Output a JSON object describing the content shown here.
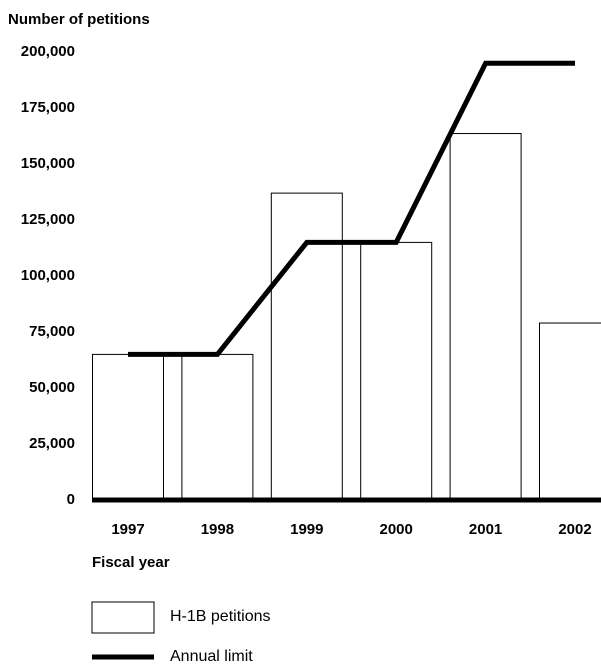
{
  "chart_data": {
    "type": "bar",
    "y_label": "Number of petitions",
    "x_label": "Fiscal year",
    "categories": [
      "1997",
      "1998",
      "1999",
      "2000",
      "2001",
      "2002"
    ],
    "series": [
      {
        "name": "H-1B petitions",
        "type": "bar",
        "color": "#ffffff",
        "values": [
          65000,
          65000,
          137000,
          115000,
          163600,
          79000
        ]
      },
      {
        "name": "Annual limit",
        "type": "line",
        "color": "#000000",
        "values": [
          65000,
          65000,
          115000,
          115000,
          195000,
          195000
        ]
      }
    ],
    "ylim": [
      0,
      200000
    ],
    "yticks": [
      {
        "value": 0,
        "label": "0"
      },
      {
        "value": 25000,
        "label": "25,000"
      },
      {
        "value": 50000,
        "label": "50,000"
      },
      {
        "value": 75000,
        "label": "75,000"
      },
      {
        "value": 100000,
        "label": "100,000"
      },
      {
        "value": 125000,
        "label": "125,000"
      },
      {
        "value": 150000,
        "label": "150,000"
      },
      {
        "value": 175000,
        "label": "175,000"
      },
      {
        "value": 200000,
        "label": "200,000"
      }
    ],
    "grid": false,
    "legend": "bottom"
  }
}
